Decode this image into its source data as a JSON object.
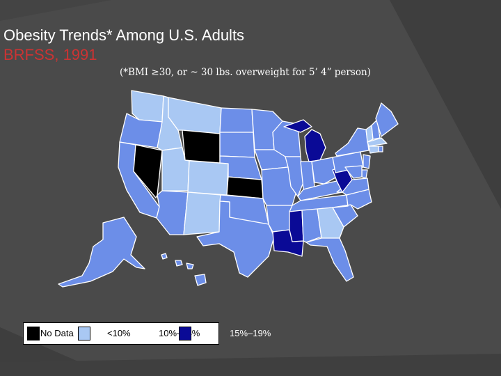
{
  "slide": {
    "title": "Obesity Trends* Among U.S. Adults",
    "subtitle": "BRFSS, 1991",
    "note": "(*BMI ≥30, or ~ 30 lbs. overweight for 5’ 4” person)"
  },
  "colors": {
    "background": "#4a4a4a",
    "subtitle_red": "#cc3333",
    "no_data": "#000000",
    "under_10": "#a9c8f3",
    "10_14": "#6c8ee8",
    "15_19": "#0a0a96",
    "border": "#ffffff"
  },
  "legend": [
    {
      "label": "No Data",
      "color_key": "no_data"
    },
    {
      "label": "<10%",
      "color_key": "under_10"
    },
    {
      "label": "10%–14%",
      "color_key": "10_14"
    },
    {
      "label": "15%–19%",
      "color_key": "15_19"
    }
  ],
  "map": {
    "title": "",
    "states_by_category": {
      "no_data": [
        "Wyoming",
        "Nevada",
        "Kansas"
      ],
      "under_10": [
        "Washington",
        "Montana",
        "Idaho",
        "Utah",
        "Colorado",
        "New Mexico",
        "Georgia",
        "Vermont",
        "Massachusetts",
        "Connecticut"
      ],
      "10_14": [
        "Oregon",
        "California",
        "Arizona",
        "North Dakota",
        "South Dakota",
        "Nebraska",
        "Oklahoma",
        "Texas",
        "Minnesota",
        "Iowa",
        "Missouri",
        "Arkansas",
        "Wisconsin",
        "Illinois",
        "Indiana",
        "Ohio",
        "Kentucky",
        "Tennessee",
        "Alabama",
        "Florida",
        "South Carolina",
        "North Carolina",
        "Virginia",
        "Pennsylvania",
        "New York",
        "Maine",
        "New Hampshire",
        "New Jersey",
        "Delaware",
        "Maryland",
        "Rhode Island",
        "Alaska",
        "Hawaii"
      ],
      "15_19": [
        "Michigan",
        "Mississippi",
        "Louisiana",
        "West Virginia"
      ]
    }
  }
}
